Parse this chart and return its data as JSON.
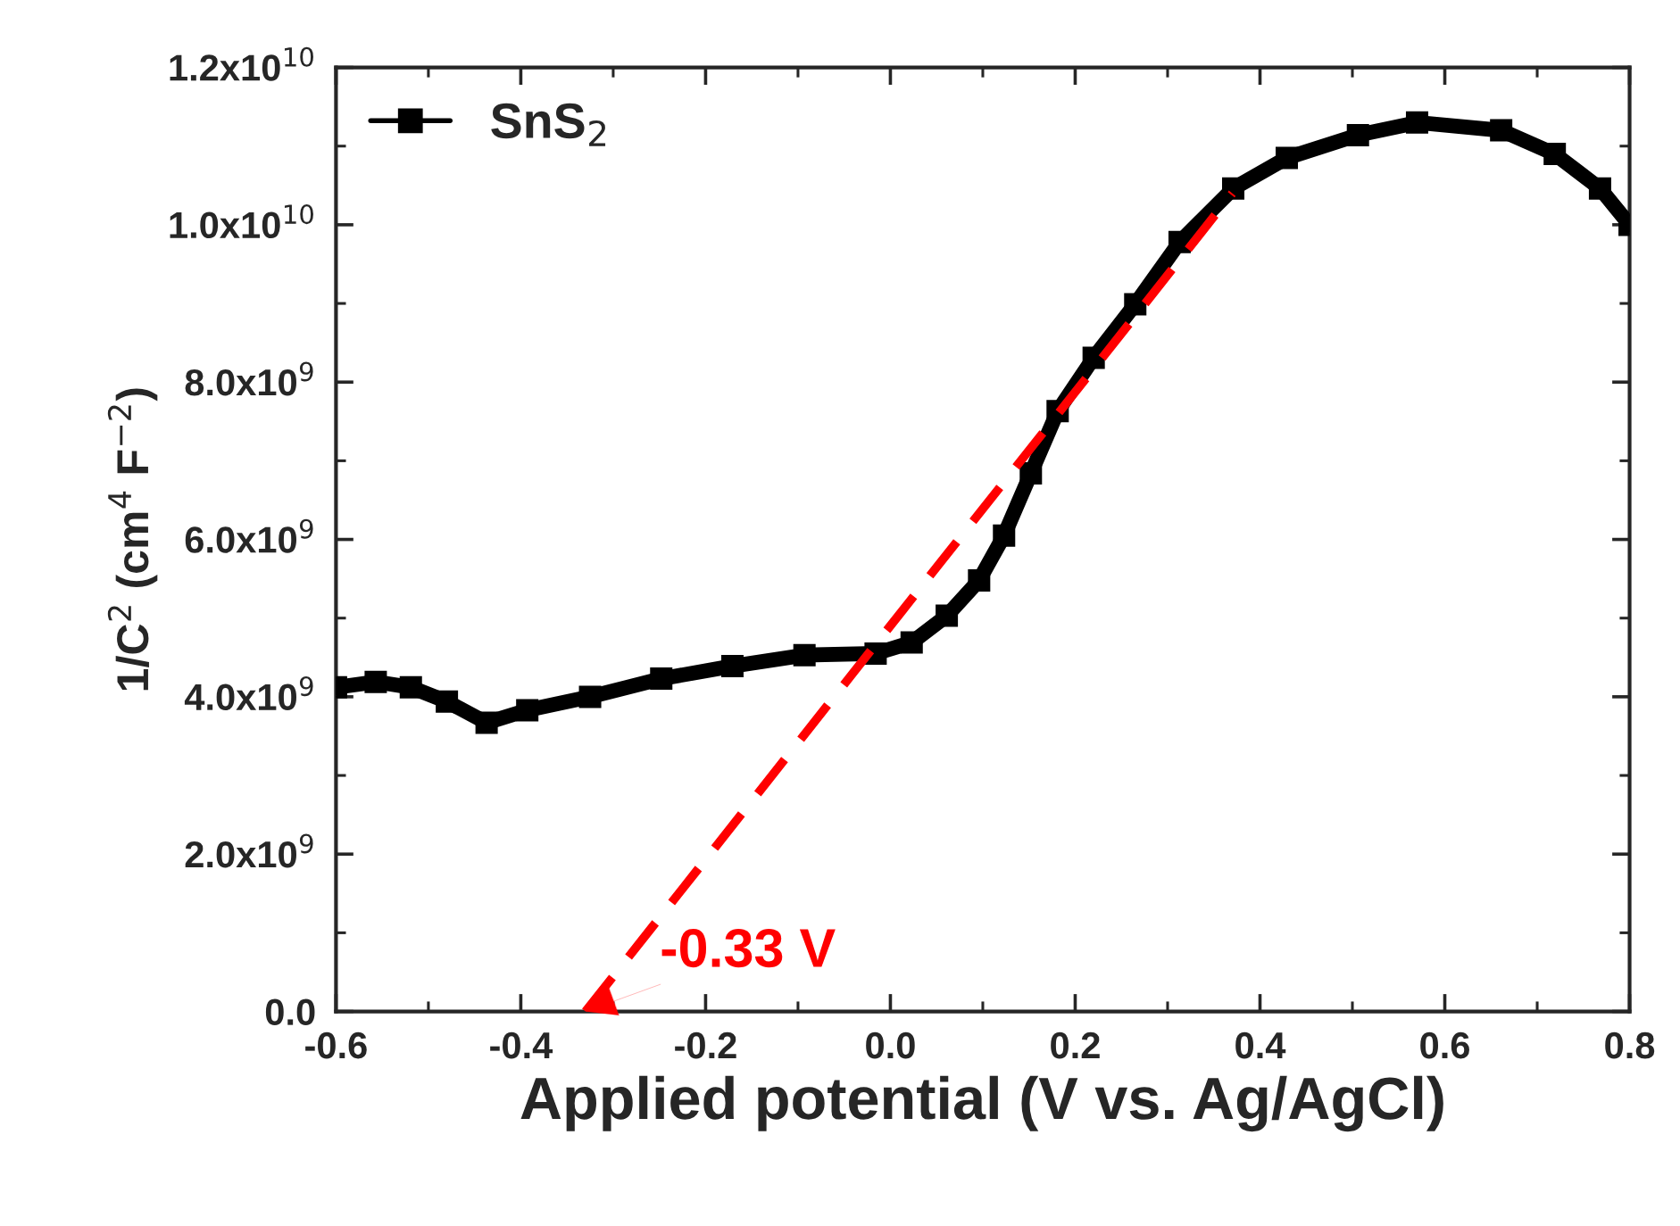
{
  "chart_data": {
    "type": "line",
    "xlabel": "Applied potential (V vs. Ag/AgCl)",
    "ylabel": "1/C$^{2}$ (cm$^{4}$ F$^{−2}$)",
    "xlim": [
      -0.6,
      0.8
    ],
    "xticks": [
      -0.6,
      -0.4,
      -0.2,
      {
        "value": 0,
        "label": "0.0"
      },
      0.2,
      0.4,
      0.6,
      0.8
    ],
    "ylim": [
      0,
      12000000000
    ],
    "yticks": [
      {
        "value": 0,
        "label": "0.0"
      },
      {
        "value": 2000000000,
        "label": "2.0x10$^{9}$"
      },
      {
        "value": 4000000000,
        "label": "4.0x10$^{9}$"
      },
      {
        "value": 6000000000,
        "label": "6.0x10$^{9}$"
      },
      {
        "value": 8000000000,
        "label": "8.0x10$^{9}$"
      },
      {
        "value": 10000000000,
        "label": "1.0x10$^{10}$"
      },
      {
        "value": 12000000000,
        "label": "1.2x10$^{10}$"
      }
    ],
    "legend": "top left",
    "grid": false,
    "series": [
      {
        "name": "SnS$_{2}$",
        "color": "#000000",
        "marker": "square",
        "line_style": "solid",
        "x": [
          -0.6,
          -0.557,
          -0.519,
          -0.48,
          -0.437,
          -0.393,
          -0.325,
          -0.248,
          -0.171,
          -0.093,
          -0.016,
          0.023,
          0.061,
          0.096,
          0.123,
          0.152,
          0.181,
          0.22,
          0.265,
          0.313,
          0.371,
          0.429,
          0.506,
          0.57,
          0.661,
          0.719,
          0.768,
          0.8
        ],
        "values": [
          4120000000,
          4190000000,
          4120000000,
          3940000000,
          3670000000,
          3830000000,
          4000000000,
          4230000000,
          4390000000,
          4530000000,
          4550000000,
          4690000000,
          5030000000,
          5480000000,
          6050000000,
          6840000000,
          7630000000,
          8310000000,
          8990000000,
          9780000000,
          10460000000,
          10850000000,
          11140000000,
          11300000000,
          11200000000,
          10900000000,
          10460000000,
          10000000000
        ]
      },
      {
        "type": "line",
        "color": "#ff0000",
        "marker": "none",
        "line_style": "dashed",
        "x": [
          -0.33,
          0.37
        ],
        "values": [
          0,
          10400000000
        ]
      }
    ],
    "annotations": [
      {
        "text": "-0.33 V",
        "x": -0.33,
        "y": 0
      }
    ]
  }
}
